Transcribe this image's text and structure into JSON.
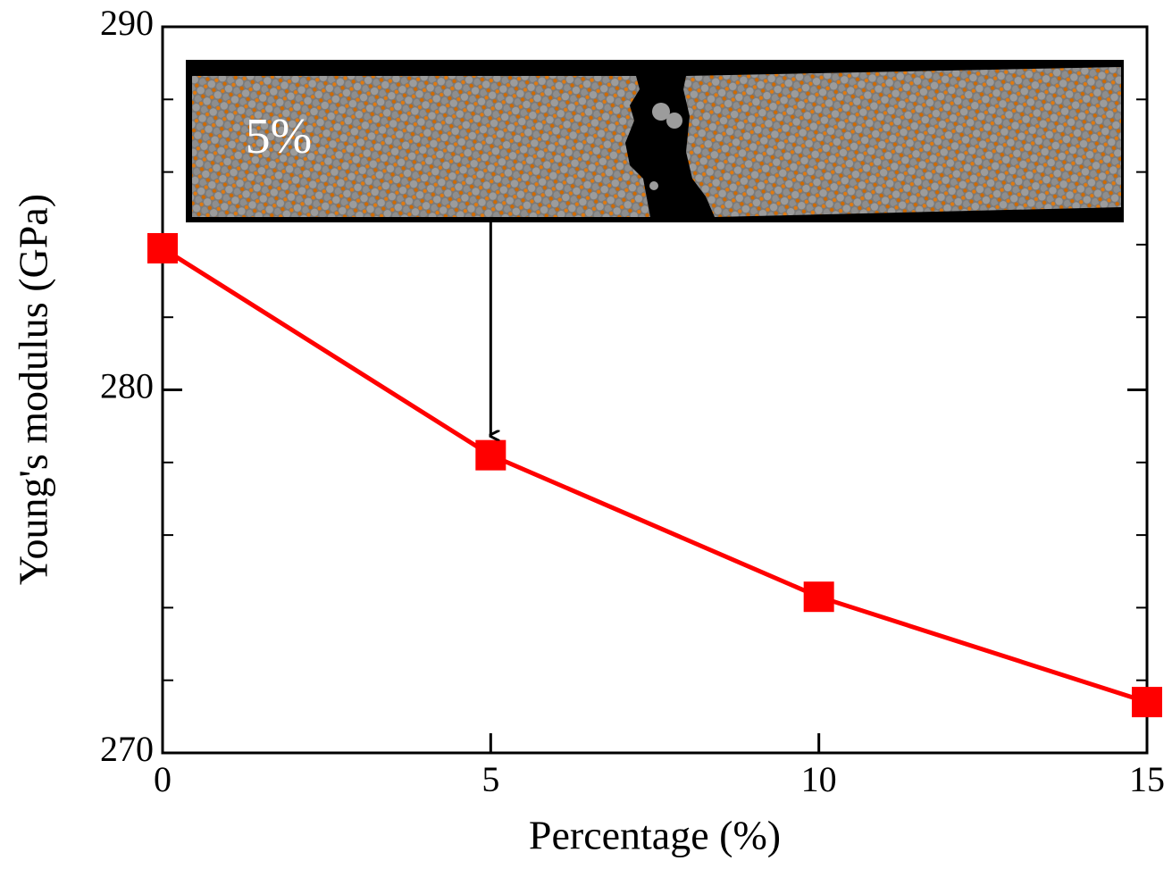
{
  "chart_data": {
    "type": "line",
    "x_label": "Percentage (%)",
    "y_label": "Young's modulus (GPa)",
    "x": [
      0,
      5,
      10,
      15
    ],
    "series": [
      {
        "values": [
          283.9,
          278.2,
          274.3,
          271.4
        ],
        "color": "#ff0000"
      }
    ],
    "xlim": [
      0,
      15
    ],
    "ylim": [
      270,
      290
    ],
    "xticks": [
      0,
      5,
      10,
      15
    ],
    "yticks": [
      270,
      280,
      290
    ],
    "y_minor_ticks": [
      272,
      274,
      276,
      278,
      282,
      284,
      286,
      288
    ],
    "annotation": "5%"
  }
}
